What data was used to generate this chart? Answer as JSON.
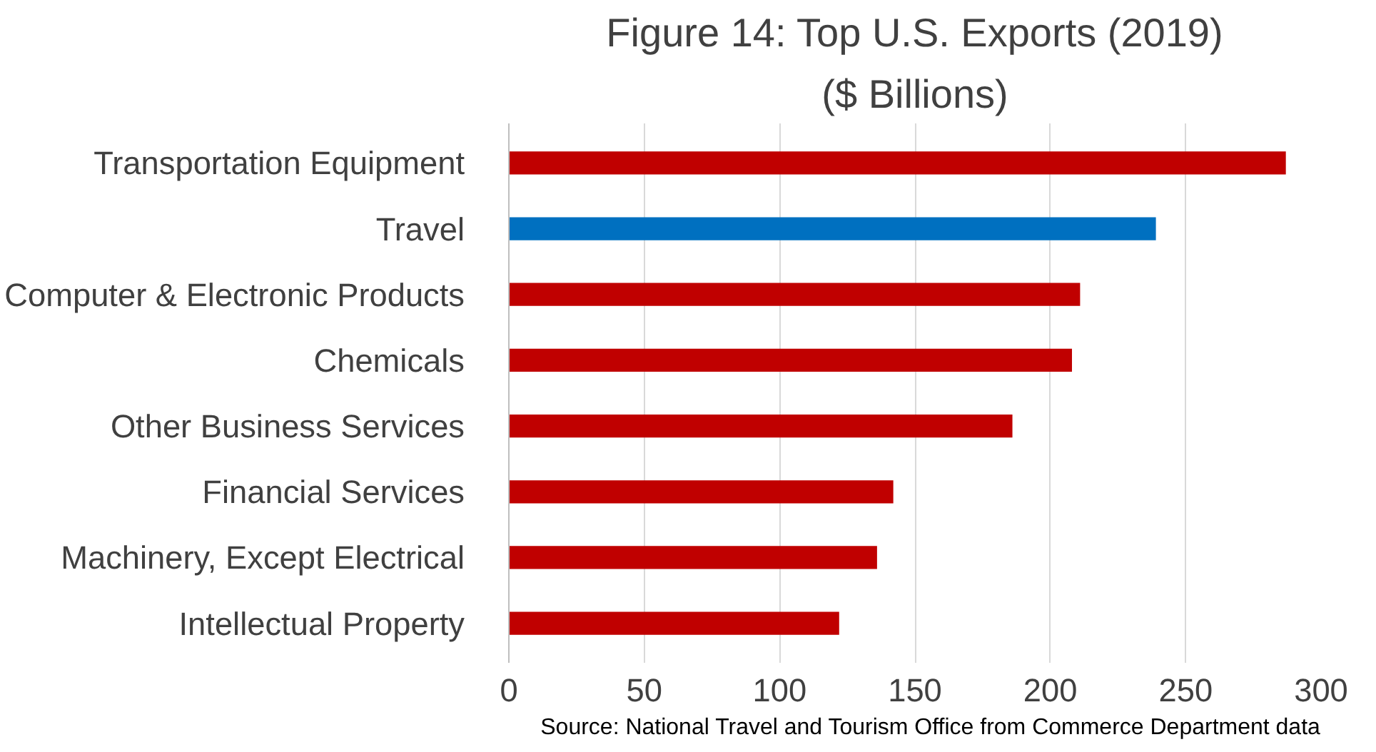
{
  "chart_data": {
    "type": "bar",
    "orientation": "horizontal",
    "title": "Figure 14: Top U.S. Exports (2019)",
    "subtitle": "($ Billions)",
    "categories": [
      "Transportation Equipment",
      "Travel",
      "Computer & Electronic Products",
      "Chemicals",
      "Other Business Services",
      "Financial Services",
      "Machinery, Except Electrical",
      "Intellectual Property"
    ],
    "values": [
      287,
      239,
      211,
      208,
      186,
      142,
      136,
      122
    ],
    "colors": [
      "#c00000",
      "#0070c0",
      "#c00000",
      "#c00000",
      "#c00000",
      "#c00000",
      "#c00000",
      "#c00000"
    ],
    "xlim": [
      0,
      300
    ],
    "xticks": [
      0,
      50,
      100,
      150,
      200,
      250,
      300
    ],
    "grid": "x",
    "annotations": [
      "Source: National Travel and Tourism Office from Commerce Department data"
    ]
  }
}
